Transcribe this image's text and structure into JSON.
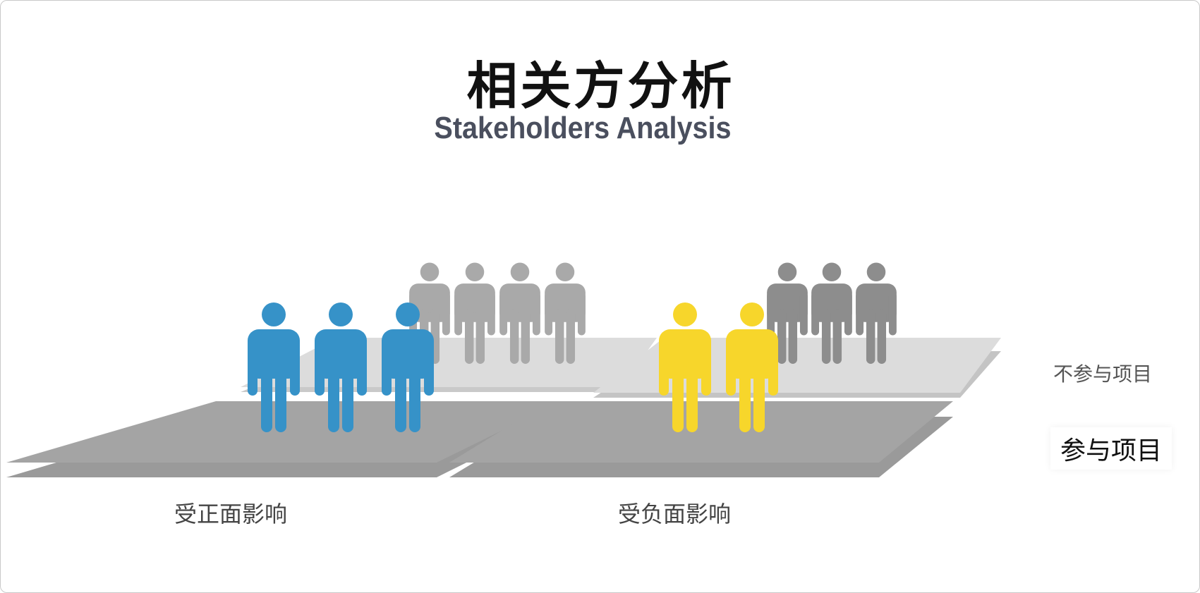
{
  "title": "相关方分析",
  "subtitle": "Stakeholders Analysis",
  "labels": {
    "positive": "受正面影响",
    "negative": "受负面影响",
    "not_involved": "不参与项目",
    "involved": "参与项目"
  },
  "colors": {
    "positive_involved": "#3692c8",
    "negative_involved": "#f7d62b",
    "positive_not_involved": "#a9a9a9",
    "negative_not_involved": "#8d8d8d",
    "front_platform": "#a4a4a4",
    "back_platform": "#dcdcdc"
  },
  "groups": [
    {
      "id": "positive-involved",
      "count": 3
    },
    {
      "id": "positive-not-involved",
      "count": 4
    },
    {
      "id": "negative-involved",
      "count": 2
    },
    {
      "id": "negative-not-involved",
      "count": 3
    }
  ]
}
